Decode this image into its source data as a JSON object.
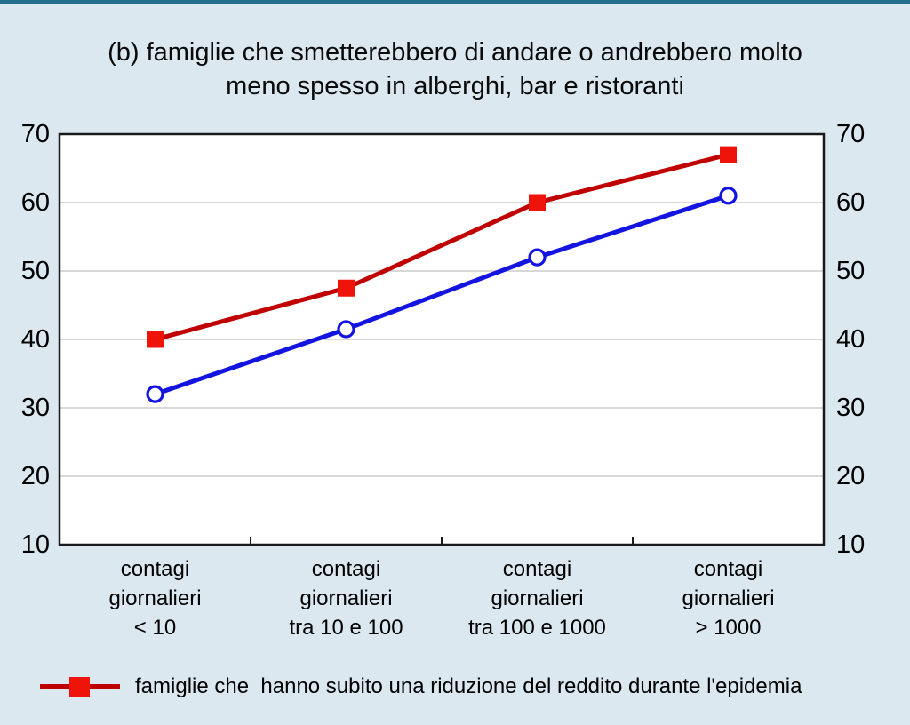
{
  "title": {
    "line1": "(b) famiglie che smetterebbero di andare o andrebbero molto",
    "line2": "meno spesso in alberghi, bar e ristoranti"
  },
  "colors": {
    "background": "#dbe8f0",
    "top_border": "#26708f",
    "plot_background": "#ffffff",
    "plot_border": "#1a1a1a",
    "gridline": "#cccccc",
    "red_line": "#c00000",
    "red_marker": "#ee1409",
    "blue_line": "#1414e0",
    "blue_marker_fill": "#ffffff",
    "text": "#000000"
  },
  "chart_data": {
    "type": "line",
    "title": "(b) famiglie che smetterebbero di andare o andrebbero molto meno spesso in alberghi, bar e ristoranti",
    "categories": [
      "contagi giornalieri < 10",
      "contagi giornalieri tra 10 e 100",
      "contagi giornalieri tra 100 e 1000",
      "contagi giornalieri > 1000"
    ],
    "categories_lines": [
      [
        "contagi",
        "giornalieri",
        "< 10"
      ],
      [
        "contagi",
        "giornalieri",
        "tra 10 e 100"
      ],
      [
        "contagi",
        "giornalieri",
        "tra 100 e 1000"
      ],
      [
        "contagi",
        "giornalieri",
        "> 1000"
      ]
    ],
    "y_ticks": [
      70,
      60,
      50,
      40,
      30,
      20,
      10
    ],
    "ylim": [
      10,
      70
    ],
    "grid": true,
    "y_axis_sides": [
      "left",
      "right"
    ],
    "series": [
      {
        "color": "#c00000",
        "marker": "filled-square",
        "marker_color": "#ee1409",
        "values": [
          40,
          47.5,
          60,
          67
        ]
      },
      {
        "color": "#1414e0",
        "marker": "open-circle",
        "marker_color": "#1414e0",
        "marker_fill": "#ffffff",
        "values": [
          32,
          41.5,
          52,
          61
        ]
      }
    ],
    "legend": {
      "position": "bottom-left",
      "items": [
        {
          "series": 0,
          "label": "famiglie che  hanno subito una riduzione del reddito durante l'epidemia"
        }
      ]
    }
  }
}
